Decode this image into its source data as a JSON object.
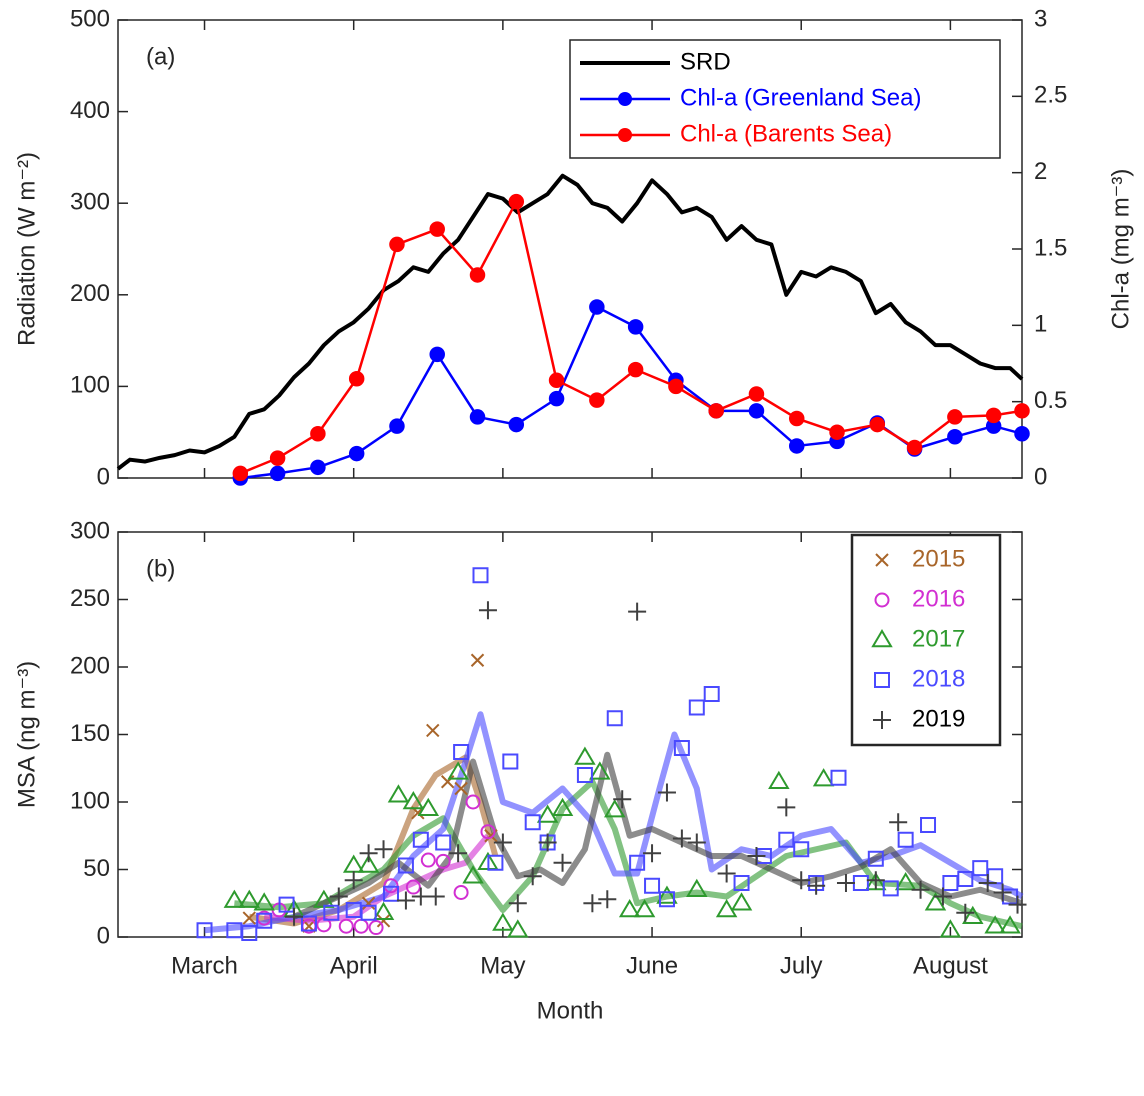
{
  "chart_data": [
    {
      "type": "line",
      "panel_label": "(a)",
      "ylabel": "Radiation (W m⁻²)",
      "y2label": "Chl-a (mg m⁻³)",
      "xlim": [
        2.42,
        8.48
      ],
      "xticks": [
        3,
        4,
        5,
        6,
        7,
        8
      ],
      "ylim": [
        0,
        500
      ],
      "yticks": [
        0,
        100,
        200,
        300,
        400,
        500
      ],
      "y2lim": [
        0,
        3
      ],
      "y2ticks": [
        0,
        0.5,
        1,
        1.5,
        2,
        2.5,
        3
      ],
      "legend": "upper right",
      "series": [
        {
          "name": "SRD",
          "color": "#000000",
          "x": [
            2.42,
            2.5,
            2.6,
            2.7,
            2.8,
            2.9,
            3.0,
            3.1,
            3.2,
            3.3,
            3.4,
            3.5,
            3.6,
            3.7,
            3.8,
            3.9,
            4.0,
            4.1,
            4.2,
            4.3,
            4.4,
            4.5,
            4.6,
            4.7,
            4.8,
            4.9,
            5.0,
            5.1,
            5.2,
            5.3,
            5.4,
            5.5,
            5.6,
            5.7,
            5.8,
            5.9,
            6.0,
            6.1,
            6.2,
            6.3,
            6.4,
            6.5,
            6.6,
            6.7,
            6.8,
            6.9,
            7.0,
            7.1,
            7.2,
            7.3,
            7.4,
            7.5,
            7.6,
            7.7,
            7.8,
            7.9,
            8.0,
            8.1,
            8.2,
            8.3,
            8.4,
            8.48
          ],
          "values": [
            10,
            20,
            18,
            22,
            25,
            30,
            28,
            35,
            45,
            70,
            75,
            90,
            110,
            125,
            145,
            160,
            170,
            185,
            205,
            215,
            230,
            225,
            245,
            260,
            285,
            310,
            305,
            290,
            300,
            310,
            330,
            320,
            300,
            295,
            280,
            300,
            325,
            310,
            290,
            295,
            285,
            260,
            275,
            260,
            255,
            200,
            225,
            220,
            230,
            225,
            215,
            180,
            190,
            170,
            160,
            145,
            145,
            135,
            125,
            120,
            120,
            108
          ]
        },
        {
          "name": "Chl-a (Greenland Sea)",
          "color": "#0000ff",
          "axis": "y2",
          "marker": "circle",
          "x": [
            3.24,
            3.49,
            3.76,
            4.02,
            4.29,
            4.56,
            4.83,
            5.09,
            5.36,
            5.63,
            5.89,
            6.16,
            6.43,
            6.7,
            6.97,
            7.24,
            7.51,
            7.76,
            8.03,
            8.29,
            8.48
          ],
          "values": [
            0,
            0.03,
            0.07,
            0.16,
            0.34,
            0.81,
            0.4,
            0.35,
            0.52,
            1.12,
            0.99,
            0.64,
            0.44,
            0.44,
            0.21,
            0.24,
            0.36,
            0.19,
            0.27,
            0.34,
            0.29
          ]
        },
        {
          "name": "Chl-a (Barents Sea)",
          "color": "#ff0000",
          "axis": "y2",
          "marker": "circle",
          "x": [
            3.24,
            3.49,
            3.76,
            4.02,
            4.29,
            4.56,
            4.83,
            5.09,
            5.36,
            5.63,
            5.89,
            6.16,
            6.43,
            6.7,
            6.97,
            7.24,
            7.51,
            7.76,
            8.03,
            8.29,
            8.48
          ],
          "values": [
            0.03,
            0.13,
            0.29,
            0.65,
            1.53,
            1.63,
            1.33,
            1.81,
            0.64,
            0.51,
            0.71,
            0.6,
            0.44,
            0.55,
            0.39,
            0.3,
            0.35,
            0.2,
            0.4,
            0.41,
            0.44
          ]
        }
      ]
    },
    {
      "type": "scatter",
      "panel_label": "(b)",
      "xlabel": "Month",
      "ylabel": "MSA (ng m⁻³)",
      "xlim": [
        2.42,
        8.48
      ],
      "xticks": [
        {
          "value": 3,
          "label": "March"
        },
        {
          "value": 4,
          "label": "April"
        },
        {
          "value": 5,
          "label": "May"
        },
        {
          "value": 6,
          "label": "June"
        },
        {
          "value": 7,
          "label": "July"
        },
        {
          "value": 8,
          "label": "August"
        }
      ],
      "ylim": [
        0,
        300
      ],
      "yticks": [
        0,
        50,
        100,
        150,
        200,
        250,
        300
      ],
      "legend": "upper right",
      "series": [
        {
          "name": "2015",
          "color": "#a8652a",
          "marker": "x",
          "x": [
            3.3,
            3.7,
            4.1,
            4.2,
            4.43,
            4.53,
            4.63,
            4.72,
            4.83,
            4.92
          ],
          "values": [
            14,
            8,
            25,
            12,
            92,
            153,
            115,
            110,
            205,
            75
          ],
          "smooth": {
            "x": [
              3.3,
              3.6,
              3.9,
              4.2,
              4.4,
              4.55,
              4.75,
              4.85,
              4.95
            ],
            "values": [
              15,
              10,
              20,
              40,
              95,
              120,
              133,
              100,
              60
            ]
          }
        },
        {
          "name": "2016",
          "color": "#d22fd2",
          "marker": "circle",
          "x": [
            3.4,
            3.5,
            3.7,
            3.8,
            3.95,
            4.05,
            4.15,
            4.25,
            4.4,
            4.5,
            4.6,
            4.72,
            4.8,
            4.9
          ],
          "values": [
            14,
            20,
            8,
            9,
            8,
            8,
            7,
            38,
            37,
            57,
            56,
            33,
            100,
            78
          ],
          "smooth": {
            "x": [
              3.4,
              3.7,
              4.0,
              4.2,
              4.4,
              4.6,
              4.75,
              4.9
            ],
            "values": [
              15,
              12,
              15,
              30,
              40,
              50,
              55,
              75
            ]
          }
        },
        {
          "name": "2017",
          "color": "#2e9a2e",
          "marker": "triangle",
          "x": [
            3.2,
            3.3,
            3.4,
            3.6,
            3.8,
            4.0,
            4.1,
            4.2,
            4.3,
            4.4,
            4.5,
            4.7,
            4.8,
            4.9,
            5.0,
            5.1,
            5.3,
            5.4,
            5.55,
            5.65,
            5.75,
            5.85,
            5.95,
            6.1,
            6.3,
            6.5,
            6.6,
            6.85,
            7.15,
            7.5,
            7.7,
            7.9,
            8.0,
            8.15,
            8.3,
            8.4
          ],
          "values": [
            27,
            27,
            25,
            20,
            27,
            53,
            53,
            18,
            105,
            100,
            95,
            122,
            45,
            55,
            10,
            5,
            90,
            95,
            133,
            122,
            94,
            20,
            20,
            30,
            35,
            20,
            25,
            115,
            117,
            40,
            40,
            25,
            5,
            15,
            8,
            8
          ],
          "smooth": {
            "x": [
              3.2,
              3.5,
              3.8,
              4.0,
              4.2,
              4.4,
              4.6,
              4.8,
              5.0,
              5.2,
              5.4,
              5.6,
              5.75,
              5.9,
              6.1,
              6.3,
              6.5,
              6.7,
              6.9,
              7.1,
              7.3,
              7.5,
              7.8,
              8.0,
              8.2,
              8.48
            ],
            "values": [
              25,
              22,
              25,
              38,
              50,
              75,
              88,
              50,
              20,
              45,
              95,
              115,
              80,
              25,
              30,
              33,
              30,
              45,
              60,
              65,
              70,
              40,
              38,
              25,
              15,
              8
            ]
          }
        },
        {
          "name": "2018",
          "color": "#4a4aff",
          "marker": "square",
          "x": [
            3.0,
            3.2,
            3.3,
            3.4,
            3.55,
            3.7,
            3.85,
            4.0,
            4.1,
            4.25,
            4.35,
            4.45,
            4.6,
            4.72,
            4.85,
            4.95,
            5.05,
            5.2,
            5.3,
            5.55,
            5.75,
            5.9,
            6.0,
            6.1,
            6.2,
            6.3,
            6.4,
            6.6,
            6.75,
            6.9,
            7.0,
            7.1,
            7.25,
            7.4,
            7.5,
            7.6,
            7.7,
            7.85,
            8.0,
            8.1,
            8.2,
            8.3,
            8.4
          ],
          "values": [
            5,
            5,
            3,
            12,
            24,
            10,
            18,
            20,
            18,
            32,
            53,
            72,
            70,
            137,
            268,
            55,
            130,
            85,
            70,
            120,
            162,
            55,
            38,
            28,
            140,
            170,
            180,
            40,
            60,
            72,
            65,
            40,
            118,
            40,
            58,
            36,
            72,
            83,
            40,
            43,
            51,
            45,
            30
          ],
          "smooth": {
            "x": [
              3.0,
              3.3,
              3.6,
              3.9,
              4.2,
              4.4,
              4.6,
              4.75,
              4.85,
              5.0,
              5.2,
              5.4,
              5.6,
              5.75,
              5.9,
              6.05,
              6.15,
              6.3,
              6.4,
              6.6,
              6.8,
              7.0,
              7.2,
              7.4,
              7.6,
              7.8,
              8.0,
              8.2,
              8.4,
              8.48
            ],
            "values": [
              5,
              8,
              15,
              20,
              30,
              60,
              80,
              130,
              165,
              100,
              92,
              110,
              85,
              47,
              47,
              110,
              150,
              110,
              50,
              65,
              60,
              75,
              80,
              55,
              60,
              68,
              55,
              42,
              35,
              30
            ]
          }
        },
        {
          "name": "2019",
          "color": "#404040",
          "marker": "plus",
          "x": [
            3.6,
            3.9,
            4.0,
            4.1,
            4.2,
            4.35,
            4.45,
            4.55,
            4.7,
            4.9,
            5.0,
            5.1,
            5.2,
            5.3,
            5.4,
            5.6,
            5.7,
            5.8,
            5.9,
            6.0,
            6.1,
            6.2,
            6.3,
            6.5,
            6.7,
            6.9,
            7.0,
            7.1,
            7.3,
            7.5,
            7.65,
            7.8,
            7.95,
            8.1,
            8.25,
            8.35,
            8.45
          ],
          "values": [
            15,
            30,
            42,
            62,
            65,
            27,
            30,
            30,
            62,
            242,
            70,
            25,
            45,
            70,
            55,
            25,
            28,
            102,
            241,
            62,
            107,
            73,
            70,
            47,
            60,
            96,
            42,
            38,
            40,
            42,
            85,
            35,
            30,
            18,
            40,
            33,
            24
          ],
          "smooth": {
            "x": [
              3.6,
              3.9,
              4.1,
              4.3,
              4.5,
              4.65,
              4.8,
              4.95,
              5.1,
              5.25,
              5.4,
              5.55,
              5.7,
              5.85,
              6.0,
              6.2,
              6.4,
              6.6,
              6.8,
              7.0,
              7.2,
              7.4,
              7.6,
              7.8,
              8.0,
              8.2,
              8.48
            ],
            "values": [
              15,
              30,
              40,
              55,
              38,
              60,
              130,
              75,
              45,
              50,
              40,
              65,
              135,
              75,
              80,
              70,
              60,
              60,
              50,
              40,
              45,
              52,
              65,
              40,
              30,
              35,
              25
            ]
          }
        }
      ]
    }
  ]
}
